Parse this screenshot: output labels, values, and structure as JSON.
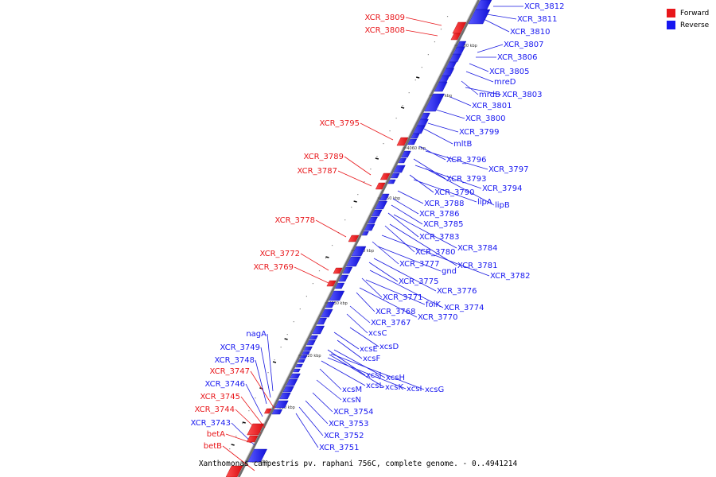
{
  "colors": {
    "forward": "#e8171b",
    "reverse": "#1717f0",
    "axis": "#777777",
    "leader_forward": "#e8171b",
    "leader_reverse": "#1a1ae0"
  },
  "legend": [
    {
      "label": "Forward",
      "color": "#e8171b"
    },
    {
      "label": "Reverse",
      "color": "#1717f0"
    }
  ],
  "caption": "Xanthomonas campestris pv. raphani 756C, complete genome. - 0..4941214",
  "axis_ticks": [
    "4080 kbp",
    "4070 kbp",
    "4060 kbp",
    "4050 kbp",
    "4040 kbp",
    "4030 kbp",
    "4020 kbp",
    "4010 kbp",
    "4000 kbp"
  ],
  "forward_genes": [
    "XCR_3809",
    "XCR_3808",
    "XCR_3795",
    "XCR_3789",
    "XCR_3787",
    "XCR_3778",
    "XCR_3772",
    "XCR_3769",
    "XCR_3747",
    "XCR_3745",
    "XCR_3744",
    "betA",
    "betB"
  ],
  "reverse_genes": [
    "XCR_3812",
    "XCR_3811",
    "XCR_3810",
    "XCR_3807",
    "XCR_3806",
    "XCR_3805",
    "mreD",
    "mrdB",
    "XCR_3803",
    "XCR_3801",
    "XCR_3800",
    "XCR_3799",
    "mltB",
    "XCR_3796",
    "XCR_3797",
    "XCR_3793",
    "XCR_3794",
    "XCR_3790",
    "lipA",
    "lipB",
    "XCR_3788",
    "XCR_3786",
    "XCR_3785",
    "XCR_3783",
    "XCR_3784",
    "XCR_3780",
    "XCR_3781",
    "XCR_3777",
    "gnd",
    "XCR_3782",
    "XCR_3775",
    "XCR_3776",
    "XCR_3771",
    "folK",
    "XCR_3774",
    "XCR_3768",
    "XCR_3770",
    "XCR_3767",
    "xcsC",
    "xcsD",
    "xcsE",
    "xcsF",
    "xcsJ",
    "xcsH",
    "xcsL",
    "xcsK",
    "xcsI",
    "xcsG",
    "xcsM",
    "xcsN",
    "XCR_3754",
    "XCR_3753",
    "XCR_3752",
    "XCR_3751",
    "nagA",
    "XCR_3749",
    "XCR_3748",
    "XCR_3746",
    "XCR_3743"
  ]
}
